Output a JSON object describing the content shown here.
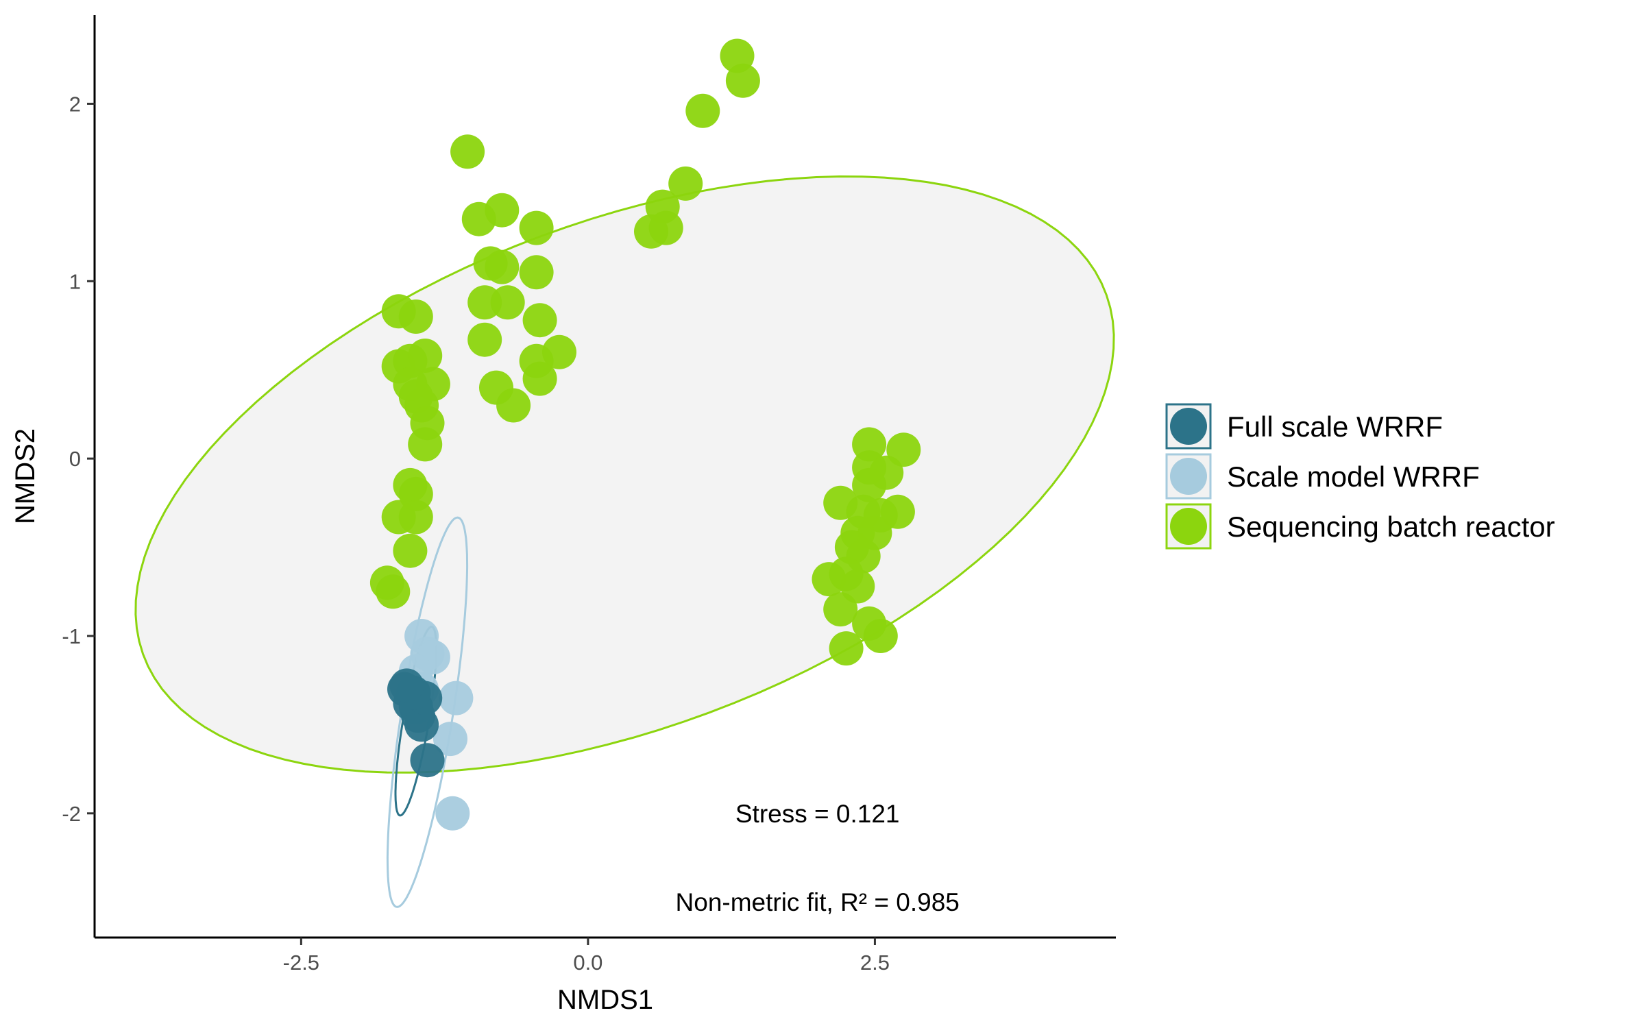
{
  "chart_data": {
    "type": "scatter",
    "title": "",
    "xlabel": "NMDS1",
    "ylabel": "NMDS2",
    "xlim": [
      -4.3,
      4.6
    ],
    "ylim": [
      -2.7,
      2.5
    ],
    "x_ticks": [
      -2.5,
      0.0,
      2.5
    ],
    "x_tick_labels": [
      "-2.5",
      "0.0",
      "2.5"
    ],
    "y_ticks": [
      -2,
      -1,
      0,
      1,
      2
    ],
    "y_tick_labels": [
      "-2",
      "-1",
      "0",
      "1",
      "2"
    ],
    "grid": false,
    "legend_placement": "right",
    "annotations": [
      {
        "text": "Stress = 0.121",
        "x": 2.0,
        "y": -2.0
      },
      {
        "text": "Non-metric fit, R² = 0.985",
        "x": 2.0,
        "y": -2.5
      }
    ],
    "series": [
      {
        "name": "Full scale WRRF",
        "color": "#2c7389",
        "points": [
          [
            -1.6,
            -1.3
          ],
          [
            -1.55,
            -1.38
          ],
          [
            -1.5,
            -1.4
          ],
          [
            -1.48,
            -1.45
          ],
          [
            -1.45,
            -1.5
          ],
          [
            -1.42,
            -1.35
          ],
          [
            -1.4,
            -1.7
          ],
          [
            -1.52,
            -1.32
          ],
          [
            -1.58,
            -1.28
          ]
        ],
        "ellipse": {
          "cx": -1.5,
          "cy": -1.48,
          "rx": 0.55,
          "ry": 0.11,
          "angle_deg": 75
        }
      },
      {
        "name": "Scale model WRRF",
        "color": "#a6cbde",
        "points": [
          [
            -1.45,
            -1.0
          ],
          [
            -1.4,
            -1.1
          ],
          [
            -1.35,
            -1.12
          ],
          [
            -1.5,
            -1.2
          ],
          [
            -1.15,
            -1.35
          ],
          [
            -1.2,
            -1.58
          ],
          [
            -1.18,
            -2.0
          ],
          [
            -1.45,
            -1.3
          ]
        ],
        "ellipse": {
          "cx": -1.4,
          "cy": -1.43,
          "rx": 1.13,
          "ry": 0.22,
          "angle_deg": 76
        }
      },
      {
        "name": "Sequencing batch reactor",
        "color": "#8cd50e",
        "points": [
          [
            -1.65,
            0.83
          ],
          [
            -1.5,
            0.8
          ],
          [
            -1.65,
            0.52
          ],
          [
            -1.55,
            0.55
          ],
          [
            -1.42,
            0.58
          ],
          [
            -1.55,
            0.42
          ],
          [
            -1.35,
            0.42
          ],
          [
            -1.5,
            0.35
          ],
          [
            -1.45,
            0.3
          ],
          [
            -1.4,
            0.2
          ],
          [
            -1.42,
            0.08
          ],
          [
            -1.55,
            -0.15
          ],
          [
            -1.5,
            -0.2
          ],
          [
            -1.65,
            -0.33
          ],
          [
            -1.5,
            -0.33
          ],
          [
            -1.55,
            -0.52
          ],
          [
            -1.75,
            -0.7
          ],
          [
            -1.7,
            -0.75
          ],
          [
            -1.05,
            1.73
          ],
          [
            -0.95,
            1.35
          ],
          [
            -0.75,
            1.4
          ],
          [
            -0.45,
            1.3
          ],
          [
            -0.85,
            1.1
          ],
          [
            -0.75,
            1.08
          ],
          [
            -0.45,
            1.05
          ],
          [
            -0.9,
            0.88
          ],
          [
            -0.7,
            0.88
          ],
          [
            -0.42,
            0.78
          ],
          [
            -0.9,
            0.67
          ],
          [
            -0.45,
            0.55
          ],
          [
            -0.25,
            0.6
          ],
          [
            -0.42,
            0.45
          ],
          [
            -0.8,
            0.4
          ],
          [
            -0.65,
            0.3
          ],
          [
            1.3,
            2.27
          ],
          [
            1.35,
            2.13
          ],
          [
            1.0,
            1.96
          ],
          [
            0.85,
            1.55
          ],
          [
            0.65,
            1.42
          ],
          [
            0.55,
            1.28
          ],
          [
            0.68,
            1.3
          ],
          [
            2.45,
            0.08
          ],
          [
            2.75,
            0.05
          ],
          [
            2.45,
            -0.05
          ],
          [
            2.6,
            -0.08
          ],
          [
            2.45,
            -0.15
          ],
          [
            2.2,
            -0.25
          ],
          [
            2.4,
            -0.3
          ],
          [
            2.55,
            -0.32
          ],
          [
            2.7,
            -0.3
          ],
          [
            2.35,
            -0.42
          ],
          [
            2.5,
            -0.42
          ],
          [
            2.3,
            -0.5
          ],
          [
            2.4,
            -0.55
          ],
          [
            2.25,
            -0.65
          ],
          [
            2.1,
            -0.68
          ],
          [
            2.35,
            -0.72
          ],
          [
            2.2,
            -0.85
          ],
          [
            2.45,
            -0.93
          ],
          [
            2.55,
            -1.0
          ],
          [
            2.25,
            -1.07
          ]
        ],
        "ellipse": {
          "cx": 0.32,
          "cy": -0.09,
          "rx": 4.34,
          "ry": 1.47,
          "angle_deg": 11.5
        }
      }
    ]
  }
}
